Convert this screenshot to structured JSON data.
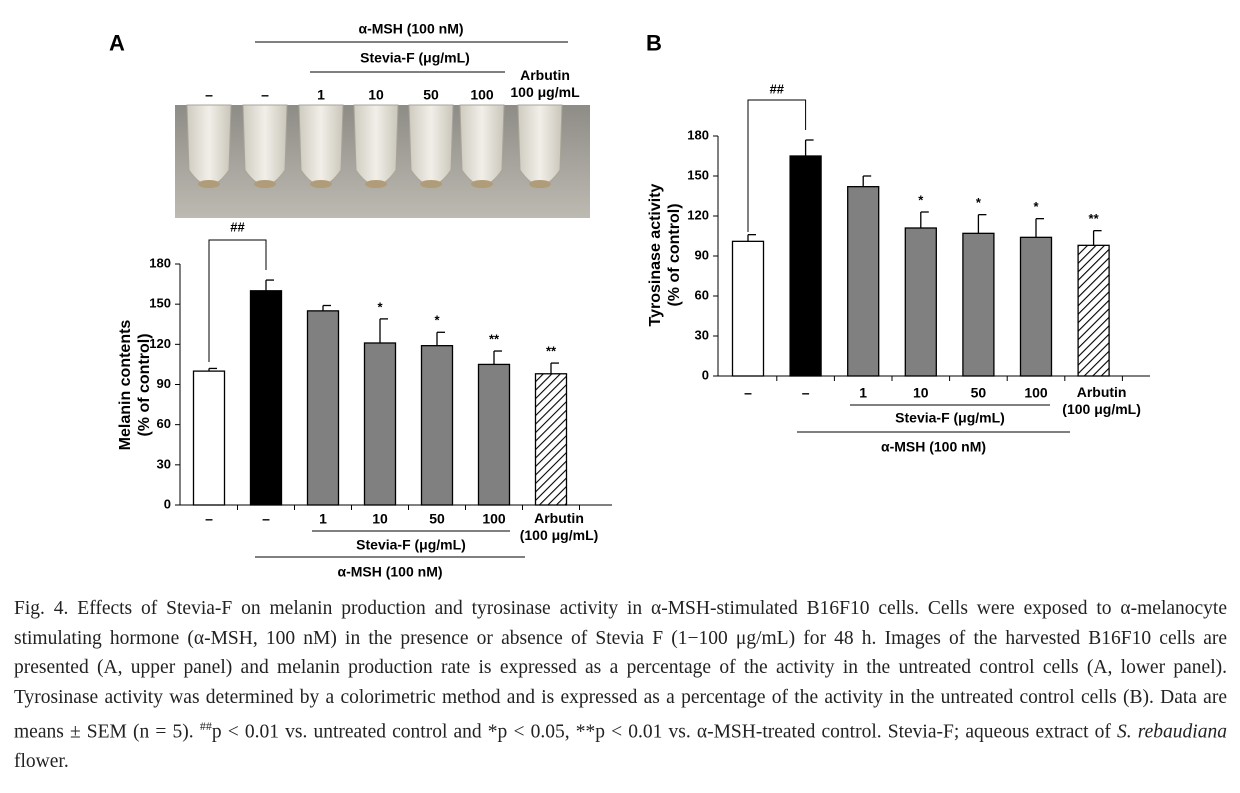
{
  "photo_panel": {
    "header": "α-MSH (100 nM)",
    "subheader": "Stevia-F (μg/mL)",
    "lanes": [
      "–",
      "–",
      "1",
      "10",
      "50",
      "100",
      "Arbutin\n100 μg/mL"
    ]
  },
  "chart_data": [
    {
      "type": "bar",
      "panel": "A",
      "ylabel": "Melanin contents\n(% of control)",
      "categories": [
        "–",
        "–",
        "1",
        "10",
        "50",
        "100",
        "Arbutin\n(100 μg/mL)"
      ],
      "values": [
        100,
        160,
        145,
        121,
        119,
        105,
        98
      ],
      "errors": [
        2,
        8,
        4,
        18,
        10,
        10,
        8
      ],
      "significance": [
        null,
        null,
        null,
        "*",
        "*",
        "**",
        "**"
      ],
      "colors": [
        "#ffffff",
        "#000000",
        "#808080",
        "#808080",
        "#808080",
        "#808080",
        "#ffffff"
      ],
      "patterns": [
        "solid",
        "solid",
        "solid",
        "solid",
        "solid",
        "solid",
        "hatch"
      ],
      "annotation": "##",
      "group_label": "Stevia-F (μg/mL)",
      "treatment_label": "α-MSH (100 nM)",
      "ylim": [
        0,
        180
      ],
      "yticks": [
        0,
        30,
        60,
        90,
        120,
        150,
        180
      ]
    },
    {
      "type": "bar",
      "panel": "B",
      "ylabel": "Tyrosinase activity\n(% of control)",
      "categories": [
        "–",
        "–",
        "1",
        "10",
        "50",
        "100",
        "Arbutin\n(100 μg/mL)"
      ],
      "values": [
        101,
        165,
        142,
        111,
        107,
        104,
        98
      ],
      "errors": [
        5,
        12,
        8,
        12,
        14,
        14,
        11
      ],
      "significance": [
        null,
        null,
        null,
        "*",
        "*",
        "*",
        "**"
      ],
      "colors": [
        "#ffffff",
        "#000000",
        "#808080",
        "#808080",
        "#808080",
        "#808080",
        "#ffffff"
      ],
      "patterns": [
        "solid",
        "solid",
        "solid",
        "solid",
        "solid",
        "solid",
        "hatch"
      ],
      "annotation": "##",
      "group_label": "Stevia-F (μg/mL)",
      "treatment_label": "α-MSH (100 nM)",
      "ylim": [
        0,
        180
      ],
      "yticks": [
        0,
        30,
        60,
        90,
        120,
        150,
        180
      ]
    }
  ],
  "caption": [
    "Fig. 4. Effects of Stevia-F on melanin production and tyrosinase activity in α-MSH-stimulated B16F10 cells. Cells were exposed to α-melanocyte stimulating hormone (α-MSH, 100 nM) in the presence or absence of Stevia F (1−100 μg/mL) for 48 h. Images of the harvested B16F10 cells are presented (A, upper panel) and melanin production rate is expressed as a percentage of the activity in the untreated control cells (A, lower panel). Tyrosinase activity was determined by a colorimetric method and is expressed as a percentage of the activity in the untreated control cells (B). Data are means ± SEM (n = 5). ",
    "##",
    "p < 0.01 vs. untreated control and *p < 0.05, **p < 0.01 vs. α-MSH-treated control. Stevia-F; aqueous extract of ",
    "S. rebaudiana",
    " flower."
  ]
}
